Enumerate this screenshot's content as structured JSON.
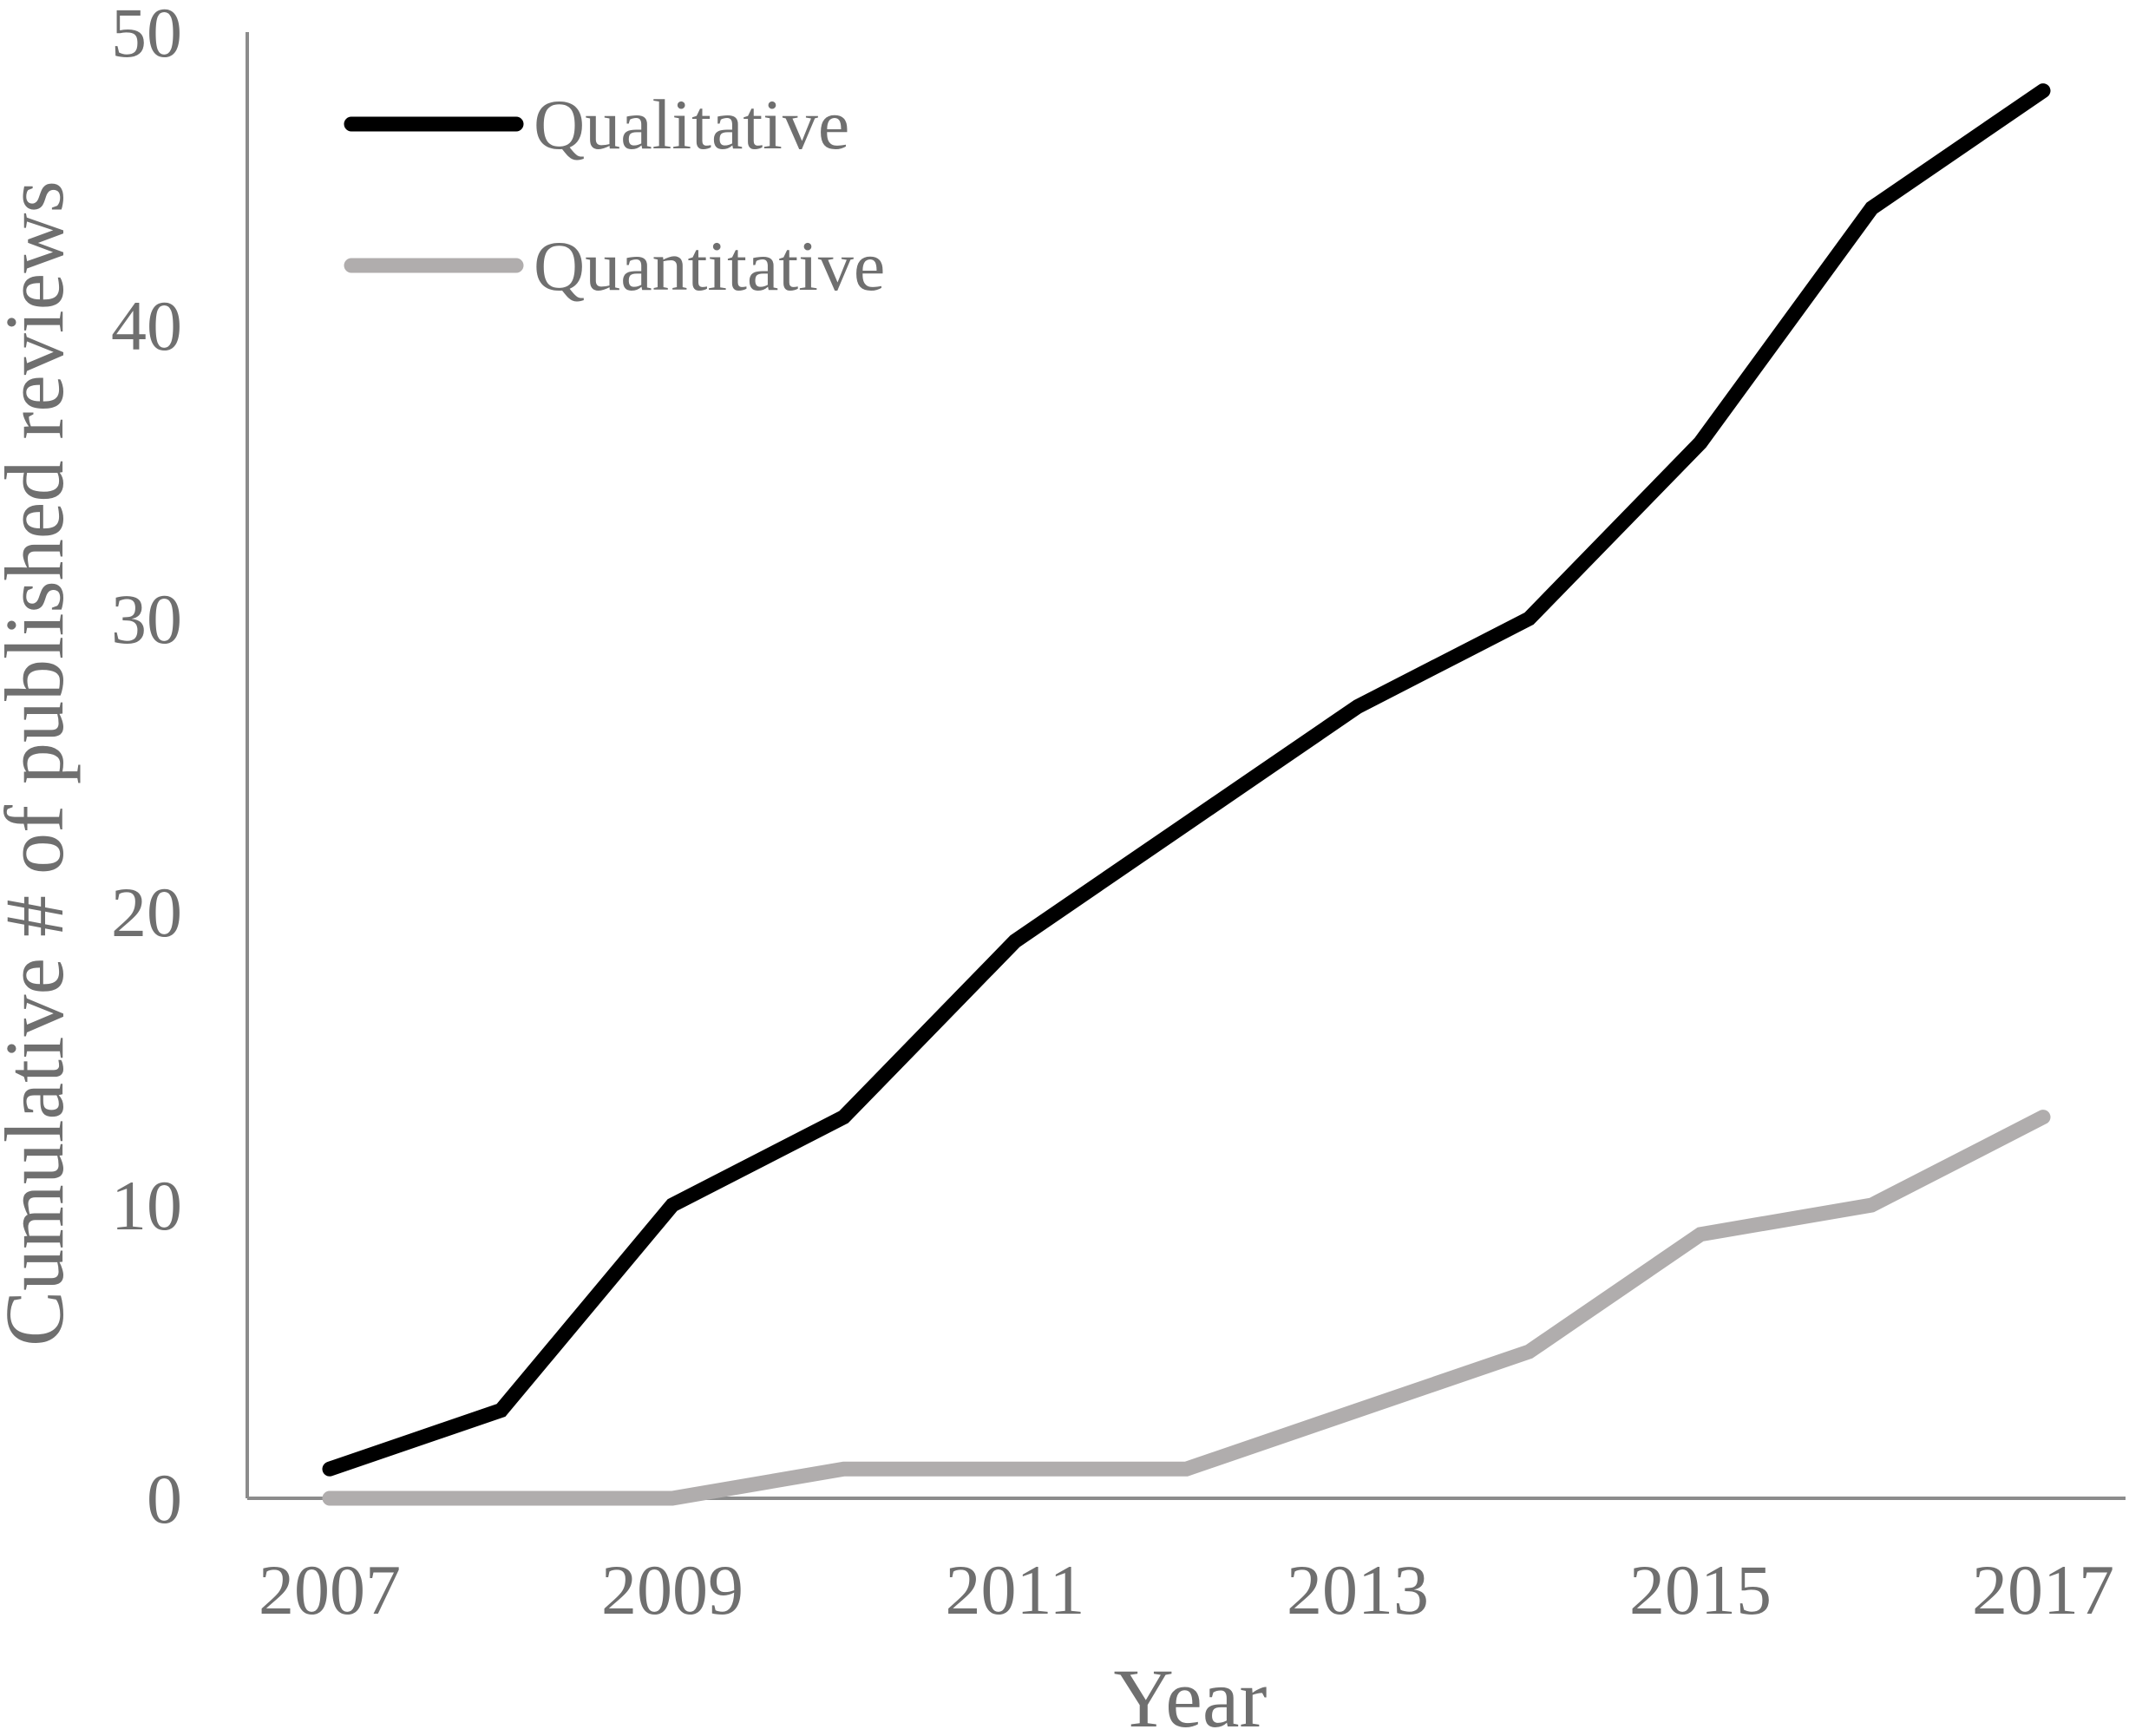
{
  "chart_data": {
    "type": "line",
    "x": [
      2007,
      2008,
      2009,
      2010,
      2011,
      2012,
      2013,
      2014,
      2015,
      2016,
      2017
    ],
    "x_tick_labels": [
      "2007",
      "2009",
      "2011",
      "2013",
      "2015",
      "2017"
    ],
    "y_tick_labels": [
      "0",
      "10",
      "20",
      "30",
      "40",
      "50"
    ],
    "series": [
      {
        "name": "Qualitative",
        "color": "#000000",
        "values": [
          1,
          3,
          10,
          13,
          19,
          23,
          27,
          30,
          36,
          44,
          48
        ]
      },
      {
        "name": "Quantitative",
        "color": "#b0adad",
        "values": [
          0,
          0,
          0,
          1,
          1,
          1,
          3,
          5,
          9,
          10,
          13
        ]
      }
    ],
    "xlabel": "Year",
    "ylabel": "Cumulative # of published reviews",
    "xlim": [
      2007,
      2017
    ],
    "ylim": [
      0,
      50
    ],
    "grid": false,
    "legend": "top-left",
    "axis_color": "#8c8c8c"
  }
}
